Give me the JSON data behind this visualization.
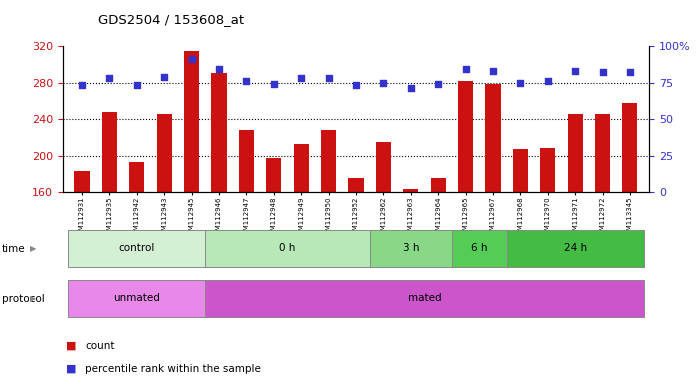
{
  "title": "GDS2504 / 153608_at",
  "samples": [
    "GSM112931",
    "GSM112935",
    "GSM112942",
    "GSM112943",
    "GSM112945",
    "GSM112946",
    "GSM112947",
    "GSM112948",
    "GSM112949",
    "GSM112950",
    "GSM112952",
    "GSM112962",
    "GSM112963",
    "GSM112964",
    "GSM112965",
    "GSM112967",
    "GSM112968",
    "GSM112970",
    "GSM112971",
    "GSM112972",
    "GSM113345"
  ],
  "bar_values": [
    183,
    248,
    193,
    245,
    315,
    291,
    228,
    197,
    213,
    228,
    175,
    215,
    163,
    175,
    282,
    278,
    207,
    208,
    245,
    245,
    258
  ],
  "percentile_values": [
    73,
    78,
    73,
    79,
    91,
    84,
    76,
    74,
    78,
    78,
    73,
    75,
    71,
    74,
    84,
    83,
    75,
    76,
    83,
    82,
    82
  ],
  "ylim_left": [
    160,
    320
  ],
  "ylim_right": [
    0,
    100
  ],
  "yticks_left": [
    160,
    200,
    240,
    280,
    320
  ],
  "yticks_right": [
    0,
    25,
    50,
    75,
    100
  ],
  "bar_color": "#cc1111",
  "dot_color": "#3333cc",
  "grid_dotted_at": [
    200,
    240,
    280
  ],
  "time_groups": [
    {
      "label": "control",
      "start": 0,
      "end": 5,
      "color": "#d4f0d4"
    },
    {
      "label": "0 h",
      "start": 5,
      "end": 11,
      "color": "#b8e8b8"
    },
    {
      "label": "3 h",
      "start": 11,
      "end": 14,
      "color": "#88d888"
    },
    {
      "label": "6 h",
      "start": 14,
      "end": 16,
      "color": "#55cc55"
    },
    {
      "label": "24 h",
      "start": 16,
      "end": 21,
      "color": "#44bb44"
    }
  ],
  "protocol_groups": [
    {
      "label": "unmated",
      "start": 0,
      "end": 5,
      "color": "#e888e8"
    },
    {
      "label": "mated",
      "start": 5,
      "end": 21,
      "color": "#cc55cc"
    }
  ],
  "legend_count_color": "#cc1111",
  "legend_dot_color": "#3333cc",
  "legend_count_label": "count",
  "legend_percentile_label": "percentile rank within the sample"
}
